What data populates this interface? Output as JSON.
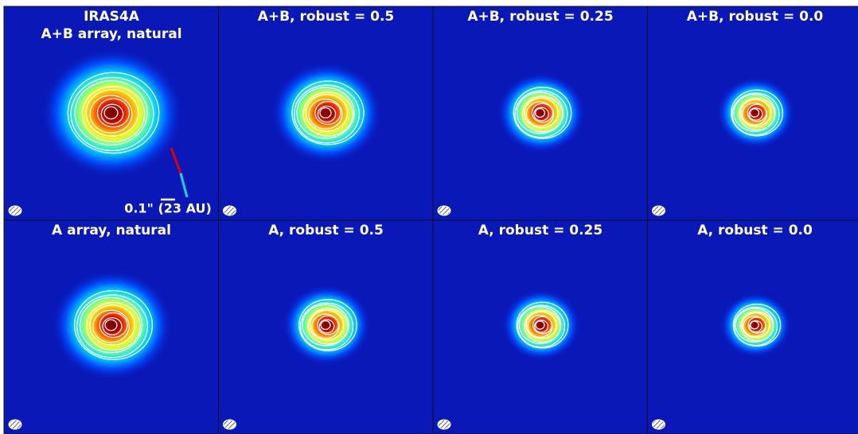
{
  "panels": [
    {
      "lines": [
        "IRAS4A",
        "A+B array, natural"
      ]
    },
    {
      "lines": [
        "A+B, robust = 0.5"
      ]
    },
    {
      "lines": [
        "A+B, robust = 0.25"
      ]
    },
    {
      "lines": [
        "A+B, robust = 0.0"
      ]
    },
    {
      "lines": [
        "A array, natural"
      ]
    },
    {
      "lines": [
        "A, robust = 0.5"
      ]
    },
    {
      "lines": [
        "A, robust = 0.25"
      ]
    },
    {
      "lines": [
        "A, robust = 0.0"
      ]
    }
  ],
  "scale_bar": "0.1\" (23 AU)"
}
